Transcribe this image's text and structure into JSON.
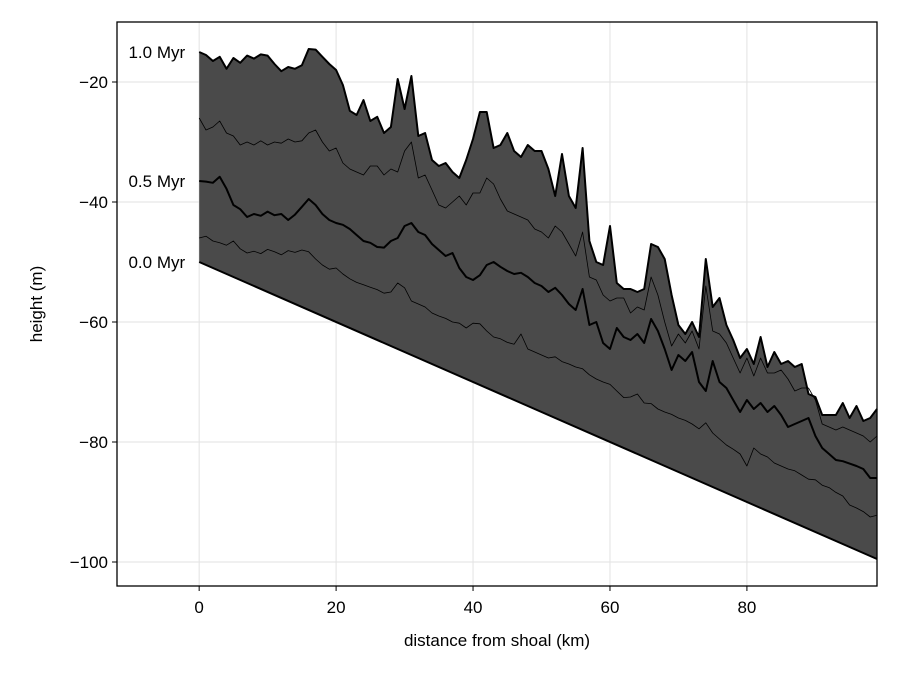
{
  "chart_data": {
    "type": "area",
    "title": "",
    "xlabel": "distance from shoal (km)",
    "ylabel": "height (m)",
    "xlim": [
      -12,
      99
    ],
    "ylim": [
      -104,
      -10
    ],
    "xticks": [
      0,
      20,
      40,
      60,
      80
    ],
    "yticks": [
      -100,
      -80,
      -60,
      -40,
      -20
    ],
    "grid": true,
    "fill_color": "#4a4a4a",
    "line_color": "#000000",
    "annotations": [
      {
        "text": "1.0 Myr",
        "x": 0,
        "y": -15
      },
      {
        "text": "0.5 Myr",
        "x": 0,
        "y": -36.5
      },
      {
        "text": "0.0 Myr",
        "x": 0,
        "y": -50
      }
    ],
    "series": [
      {
        "role": "basement",
        "x": [
          0,
          99
        ],
        "values": [
          -50,
          -99.5
        ]
      },
      {
        "role": "intermediate",
        "x": [
          0,
          1,
          2,
          3,
          4,
          5,
          6,
          7,
          8,
          9,
          10,
          11,
          12,
          13,
          14,
          15,
          16,
          17,
          18,
          19,
          20,
          21,
          22,
          23,
          24,
          25,
          26,
          27,
          28,
          29,
          30,
          31,
          32,
          33,
          34,
          35,
          36,
          37,
          38,
          39,
          40,
          41,
          42,
          43,
          44,
          45,
          46,
          47,
          48,
          49,
          50,
          51,
          52,
          53,
          54,
          55,
          56,
          57,
          58,
          59,
          60,
          61,
          62,
          63,
          64,
          65,
          66,
          67,
          68,
          69,
          70,
          71,
          72,
          73,
          74,
          75,
          76,
          77,
          78,
          79,
          80,
          81,
          82,
          83,
          84,
          85,
          86,
          87,
          88,
          89,
          90,
          91,
          92,
          93,
          94,
          95,
          96,
          97,
          98,
          99
        ],
        "values": [
          -46,
          -45.7,
          -46.5,
          -46.8,
          -47.2,
          -46.5,
          -47.8,
          -48.5,
          -48.2,
          -48.6,
          -47.9,
          -48.3,
          -48.8,
          -48.1,
          -48.4,
          -48.0,
          -48.3,
          -49.5,
          -50.5,
          -51.2,
          -51.0,
          -52.0,
          -52.8,
          -53.4,
          -53.8,
          -54.2,
          -54.6,
          -55.2,
          -55.0,
          -53.5,
          -54.3,
          -56.5,
          -57.0,
          -57.5,
          -58.5,
          -59.0,
          -59.4,
          -60.0,
          -60.2,
          -61.0,
          -60.2,
          -60.3,
          -61.5,
          -62.5,
          -62.8,
          -63.4,
          -63.7,
          -62.0,
          -64.5,
          -65.0,
          -65.5,
          -66.0,
          -65.8,
          -66.6,
          -67.0,
          -67.5,
          -67.8,
          -68.8,
          -69.5,
          -70.0,
          -70.4,
          -71.5,
          -72.6,
          -72.5,
          -72.0,
          -73.5,
          -73.6,
          -74.5,
          -75.0,
          -75.4,
          -76.0,
          -76.4,
          -77.0,
          -77.8,
          -76.8,
          -78.5,
          -79.5,
          -80.5,
          -81.2,
          -82.0,
          -84.0,
          -81.0,
          -82.0,
          -82.5,
          -83.5,
          -84.0,
          -84.5,
          -84.8,
          -85.5,
          -86.2,
          -86.3,
          -87.2,
          -87.6,
          -88.4,
          -89.0,
          -90.5,
          -91.0,
          -91.6,
          -92.5,
          -92.2
        ]
      },
      {
        "role": "0.5 Myr",
        "x": [
          0,
          1,
          2,
          3,
          4,
          5,
          6,
          7,
          8,
          9,
          10,
          11,
          12,
          13,
          14,
          15,
          16,
          17,
          18,
          19,
          20,
          21,
          22,
          23,
          24,
          25,
          26,
          27,
          28,
          29,
          30,
          31,
          32,
          33,
          34,
          35,
          36,
          37,
          38,
          39,
          40,
          41,
          42,
          43,
          44,
          45,
          46,
          47,
          48,
          49,
          50,
          51,
          52,
          53,
          54,
          55,
          56,
          57,
          58,
          59,
          60,
          61,
          62,
          63,
          64,
          65,
          66,
          67,
          68,
          69,
          70,
          71,
          72,
          73,
          74,
          75,
          76,
          77,
          78,
          79,
          80,
          81,
          82,
          83,
          84,
          85,
          86,
          87,
          88,
          89,
          90,
          91,
          92,
          93,
          94,
          95,
          96,
          97,
          98,
          99
        ],
        "values": [
          -36.5,
          -36.6,
          -36.8,
          -35.8,
          -37.8,
          -40.5,
          -41.2,
          -42.5,
          -42.0,
          -42.3,
          -41.6,
          -42.2,
          -42.0,
          -43.0,
          -42.1,
          -40.8,
          -39.5,
          -40.5,
          -42.0,
          -43.0,
          -43.5,
          -43.8,
          -44.5,
          -45.5,
          -46.5,
          -46.8,
          -47.5,
          -47.6,
          -46.5,
          -46.0,
          -44.0,
          -43.5,
          -45.0,
          -45.5,
          -47.0,
          -48.0,
          -49.0,
          -48.5,
          -51.0,
          -52.5,
          -53.0,
          -52.2,
          -50.5,
          -50.0,
          -50.8,
          -51.5,
          -52.0,
          -51.8,
          -52.5,
          -53.5,
          -54.0,
          -55.0,
          -54.3,
          -55.5,
          -57.0,
          -58.0,
          -54.5,
          -60.5,
          -60.0,
          -63.5,
          -64.5,
          -61.0,
          -62.5,
          -63.0,
          -62.0,
          -63.5,
          -59.5,
          -61.5,
          -64.5,
          -68.0,
          -65.5,
          -66.5,
          -65.0,
          -70.0,
          -71.5,
          -66.5,
          -70.0,
          -71.0,
          -73.0,
          -75.0,
          -73.0,
          -74.5,
          -73.5,
          -75.0,
          -74.0,
          -75.5,
          -77.5,
          -77.0,
          -76.5,
          -76.0,
          -79.0,
          -81.0,
          -82.0,
          -83.0,
          -83.2,
          -83.6,
          -84.0,
          -84.5,
          -86.0,
          -86.0
        ]
      },
      {
        "role": "intermediate",
        "x": [
          0,
          1,
          2,
          3,
          4,
          5,
          6,
          7,
          8,
          9,
          10,
          11,
          12,
          13,
          14,
          15,
          16,
          17,
          18,
          19,
          20,
          21,
          22,
          23,
          24,
          25,
          26,
          27,
          28,
          29,
          30,
          31,
          32,
          33,
          34,
          35,
          36,
          37,
          38,
          39,
          40,
          41,
          42,
          43,
          44,
          45,
          46,
          47,
          48,
          49,
          50,
          51,
          52,
          53,
          54,
          55,
          56,
          57,
          58,
          59,
          60,
          61,
          62,
          63,
          64,
          65,
          66,
          67,
          68,
          69,
          70,
          71,
          72,
          73,
          74,
          75,
          76,
          77,
          78,
          79,
          80,
          81,
          82,
          83,
          84,
          85,
          86,
          87,
          88,
          89,
          90,
          91,
          92,
          93,
          94,
          95,
          96,
          97,
          98,
          99
        ],
        "values": [
          -26.0,
          -28.0,
          -27.5,
          -26.5,
          -28.5,
          -29.0,
          -30.5,
          -30.0,
          -30.5,
          -29.8,
          -30.5,
          -30.0,
          -30.2,
          -29.5,
          -30.0,
          -29.8,
          -28.5,
          -28.0,
          -30.0,
          -31.5,
          -31.0,
          -33.5,
          -34.5,
          -35.0,
          -35.5,
          -34.0,
          -34.0,
          -35.5,
          -34.5,
          -35.0,
          -31.5,
          -30.0,
          -36.0,
          -35.5,
          -38.0,
          -40.5,
          -41.0,
          -40.0,
          -39.0,
          -40.5,
          -38.5,
          -38.5,
          -36.0,
          -37.0,
          -39.5,
          -41.5,
          -42.0,
          -42.5,
          -43.0,
          -44.5,
          -45.0,
          -46.0,
          -44.0,
          -45.0,
          -47.0,
          -49.0,
          -45.0,
          -52.5,
          -53.0,
          -55.5,
          -56.5,
          -56.0,
          -56.0,
          -58.5,
          -57.5,
          -58.0,
          -52.5,
          -55.5,
          -60.0,
          -64.0,
          -62.0,
          -63.5,
          -61.5,
          -64.5,
          -54.0,
          -61.5,
          -62.0,
          -63.5,
          -66.0,
          -68.5,
          -66.0,
          -69.0,
          -66.0,
          -68.5,
          -68.5,
          -68.0,
          -69.5,
          -71.5,
          -71.0,
          -71.0,
          -73.0,
          -77.0,
          -77.5,
          -78.0,
          -77.5,
          -78.0,
          -78.5,
          -79.0,
          -80.0,
          -79.0
        ]
      },
      {
        "role": "1.0 Myr",
        "x": [
          0,
          1,
          2,
          3,
          4,
          5,
          6,
          7,
          8,
          9,
          10,
          11,
          12,
          13,
          14,
          15,
          16,
          17,
          18,
          19,
          20,
          21,
          22,
          23,
          24,
          25,
          26,
          27,
          28,
          29,
          30,
          31,
          32,
          33,
          34,
          35,
          36,
          37,
          38,
          39,
          40,
          41,
          42,
          43,
          44,
          45,
          46,
          47,
          48,
          49,
          50,
          51,
          52,
          53,
          54,
          55,
          56,
          57,
          58,
          59,
          60,
          61,
          62,
          63,
          64,
          65,
          66,
          67,
          68,
          69,
          70,
          71,
          72,
          73,
          74,
          75,
          76,
          77,
          78,
          79,
          80,
          81,
          82,
          83,
          84,
          85,
          86,
          87,
          88,
          89,
          90,
          91,
          92,
          93,
          94,
          95,
          96,
          97,
          98,
          99
        ],
        "values": [
          -15.0,
          -15.5,
          -16.5,
          -15.8,
          -17.8,
          -16.0,
          -16.8,
          -15.6,
          -16.1,
          -15.4,
          -15.6,
          -17.0,
          -18.2,
          -17.5,
          -17.8,
          -17.2,
          -14.5,
          -14.6,
          -15.8,
          -17.0,
          -18.0,
          -20.5,
          -24.8,
          -25.5,
          -23.0,
          -26.5,
          -25.8,
          -28.5,
          -27.5,
          -19.5,
          -24.5,
          -19.0,
          -29.0,
          -28.5,
          -33.0,
          -34.0,
          -33.5,
          -35.0,
          -36.0,
          -33.0,
          -29.5,
          -25.0,
          -25.0,
          -31.0,
          -30.5,
          -28.5,
          -31.5,
          -32.5,
          -30.5,
          -31.5,
          -31.5,
          -34.5,
          -39.0,
          -32.0,
          -39.0,
          -41.0,
          -31.0,
          -46.5,
          -50.0,
          -50.5,
          -44.0,
          -53.5,
          -54.5,
          -54.5,
          -55.0,
          -54.5,
          -47.0,
          -47.5,
          -49.5,
          -55.5,
          -60.5,
          -62.0,
          -60.0,
          -62.5,
          -49.5,
          -57.5,
          -56.0,
          -60.5,
          -63.0,
          -66.0,
          -64.5,
          -67.0,
          -62.5,
          -67.5,
          -65.0,
          -67.0,
          -66.5,
          -67.5,
          -67.0,
          -72.0,
          -72.5,
          -75.5,
          -75.5,
          -75.5,
          -73.5,
          -76.0,
          -74.0,
          -76.5,
          -76.0,
          -74.5
        ]
      }
    ]
  }
}
